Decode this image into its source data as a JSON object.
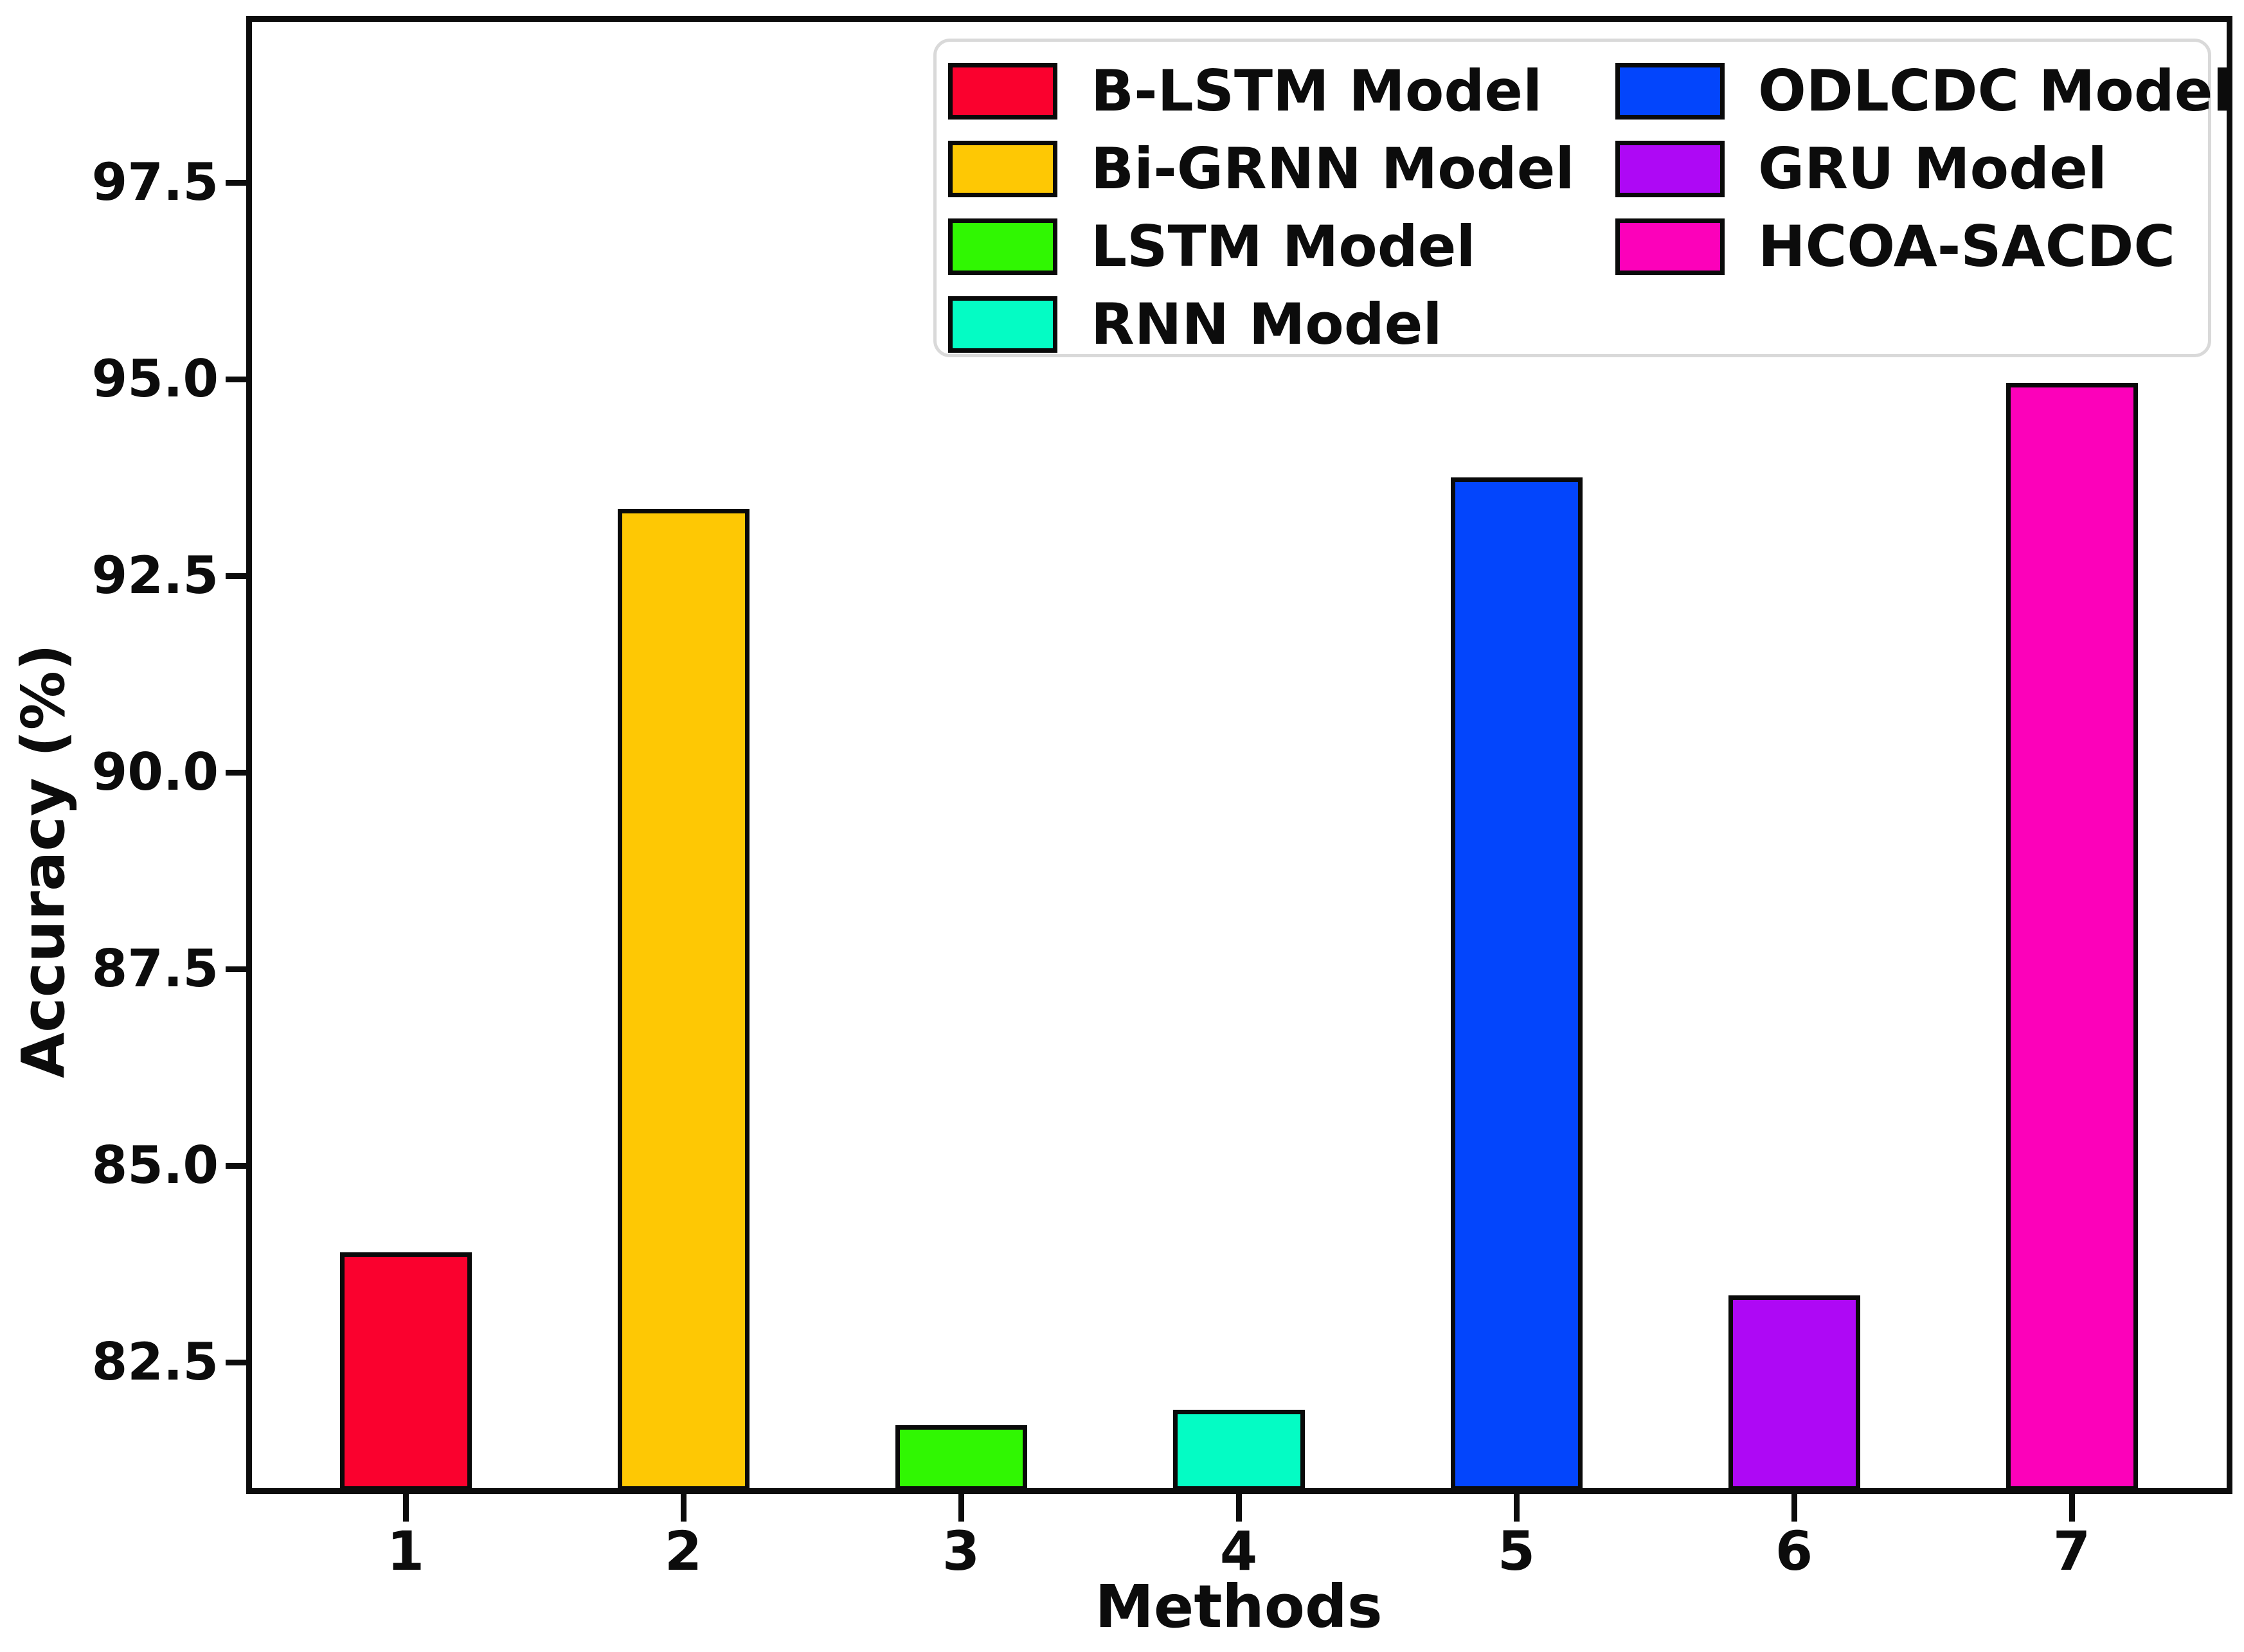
{
  "figure": {
    "background": "#ffffff"
  },
  "chart_data": {
    "type": "bar",
    "title": "",
    "xlabel": "Methods",
    "ylabel": "Accuracy (%)",
    "categories": [
      "1",
      "2",
      "3",
      "4",
      "5",
      "6",
      "7"
    ],
    "series": [
      {
        "name": "B-LSTM Model",
        "category": "1",
        "value": 83.9,
        "color": "#fa012e"
      },
      {
        "name": "Bi-GRNN Model",
        "category": "2",
        "value": 93.35,
        "color": "#fec804"
      },
      {
        "name": "LSTM Model",
        "category": "3",
        "value": 81.7,
        "color": "#30f702"
      },
      {
        "name": "RNN Model",
        "category": "4",
        "value": 81.9,
        "color": "#04fcc4"
      },
      {
        "name": "ODLCDC Model",
        "category": "5",
        "value": 93.75,
        "color": "#0345fc"
      },
      {
        "name": "GRU Model",
        "category": "6",
        "value": 83.35,
        "color": "#ae08f5"
      },
      {
        "name": "HCOA-SACDC",
        "category": "7",
        "value": 94.95,
        "color": "#fc01ba"
      }
    ],
    "ylim": [
      80.9,
      99.6
    ],
    "yticks": [
      82.5,
      85.0,
      87.5,
      90.0,
      92.5,
      95.0,
      97.5
    ],
    "ytick_labels": [
      "82.5",
      "85.0",
      "87.5",
      "90.0",
      "92.5",
      "95.0",
      "97.5"
    ],
    "grid": false,
    "legend_position": "upper right",
    "legend_order": [
      "B-LSTM Model",
      "Bi-GRNN Model",
      "LSTM Model",
      "RNN Model",
      "ODLCDC Model",
      "GRU Model",
      "HCOA-SACDC"
    ],
    "bar_edge_color": "#0a0a0a"
  }
}
